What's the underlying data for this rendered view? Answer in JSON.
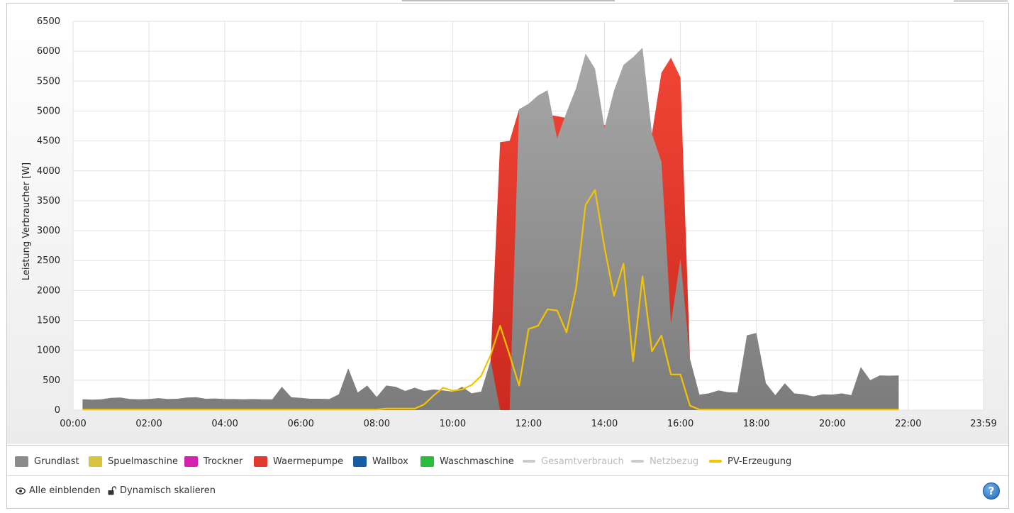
{
  "chart_data": {
    "type": "area",
    "ylabel": "Leistung Verbraucher [W]",
    "xlabel": "",
    "ylim": [
      0,
      6500
    ],
    "y_ticks": [
      "0",
      "500",
      "1000",
      "1500",
      "2000",
      "2500",
      "3000",
      "3500",
      "4000",
      "4500",
      "5000",
      "5500",
      "6000",
      "6500"
    ],
    "x_tick_labels": [
      "00:00",
      "02:00",
      "04:00",
      "06:00",
      "08:00",
      "10:00",
      "12:00",
      "14:00",
      "16:00",
      "18:00",
      "20:00",
      "22:00",
      "23:59"
    ],
    "x_tick_minutes": [
      0,
      120,
      240,
      360,
      480,
      600,
      720,
      840,
      960,
      1080,
      1200,
      1320,
      1439
    ],
    "x_range_minutes": [
      0,
      1439
    ],
    "grid": true,
    "series": [
      {
        "name": "Grundlast",
        "color": "#8c8c8c",
        "kind": "area",
        "points": [
          [
            15,
            180
          ],
          [
            30,
            175
          ],
          [
            45,
            180
          ],
          [
            60,
            205
          ],
          [
            75,
            210
          ],
          [
            90,
            185
          ],
          [
            105,
            180
          ],
          [
            120,
            185
          ],
          [
            135,
            200
          ],
          [
            150,
            185
          ],
          [
            165,
            190
          ],
          [
            180,
            210
          ],
          [
            195,
            215
          ],
          [
            210,
            190
          ],
          [
            225,
            195
          ],
          [
            240,
            185
          ],
          [
            255,
            185
          ],
          [
            270,
            180
          ],
          [
            285,
            185
          ],
          [
            300,
            180
          ],
          [
            315,
            180
          ],
          [
            330,
            390
          ],
          [
            345,
            215
          ],
          [
            360,
            205
          ],
          [
            375,
            190
          ],
          [
            390,
            190
          ],
          [
            405,
            185
          ],
          [
            420,
            265
          ],
          [
            435,
            700
          ],
          [
            450,
            295
          ],
          [
            465,
            410
          ],
          [
            480,
            220
          ],
          [
            495,
            410
          ],
          [
            510,
            390
          ],
          [
            525,
            320
          ],
          [
            540,
            375
          ],
          [
            555,
            320
          ],
          [
            570,
            345
          ],
          [
            585,
            330
          ],
          [
            600,
            310
          ],
          [
            615,
            390
          ],
          [
            630,
            280
          ],
          [
            645,
            310
          ],
          [
            660,
            830
          ],
          [
            675,
            0
          ],
          [
            690,
            0
          ],
          [
            705,
            5030
          ],
          [
            720,
            5120
          ],
          [
            735,
            5260
          ],
          [
            750,
            5350
          ],
          [
            765,
            4540
          ],
          [
            780,
            4980
          ],
          [
            795,
            5380
          ],
          [
            810,
            5960
          ],
          [
            825,
            5710
          ],
          [
            840,
            4720
          ],
          [
            855,
            5340
          ],
          [
            870,
            5770
          ],
          [
            885,
            5900
          ],
          [
            900,
            6060
          ],
          [
            915,
            4620
          ],
          [
            930,
            4150
          ],
          [
            945,
            1450
          ],
          [
            960,
            2530
          ],
          [
            975,
            860
          ],
          [
            990,
            260
          ],
          [
            1005,
            280
          ],
          [
            1020,
            330
          ],
          [
            1035,
            300
          ],
          [
            1050,
            295
          ],
          [
            1065,
            1250
          ],
          [
            1080,
            1290
          ],
          [
            1095,
            450
          ],
          [
            1110,
            250
          ],
          [
            1125,
            450
          ],
          [
            1140,
            280
          ],
          [
            1155,
            265
          ],
          [
            1170,
            230
          ],
          [
            1185,
            265
          ],
          [
            1200,
            260
          ],
          [
            1215,
            280
          ],
          [
            1230,
            250
          ],
          [
            1245,
            720
          ],
          [
            1260,
            500
          ],
          [
            1275,
            580
          ],
          [
            1290,
            575
          ],
          [
            1305,
            580
          ]
        ]
      },
      {
        "name": "Waermepumpe",
        "color": "#e23a2e",
        "kind": "area",
        "points": [
          [
            660,
            830
          ],
          [
            675,
            4480
          ],
          [
            690,
            4500
          ],
          [
            705,
            5030
          ],
          [
            915,
            4620
          ],
          [
            930,
            5640
          ],
          [
            945,
            5890
          ],
          [
            960,
            5560
          ],
          [
            975,
            860
          ]
        ]
      },
      {
        "name": "PV-Erzeugung",
        "color": "#f5c400",
        "kind": "line",
        "points": [
          [
            15,
            10
          ],
          [
            60,
            10
          ],
          [
            120,
            10
          ],
          [
            180,
            10
          ],
          [
            240,
            10
          ],
          [
            300,
            10
          ],
          [
            360,
            10
          ],
          [
            420,
            10
          ],
          [
            480,
            10
          ],
          [
            495,
            25
          ],
          [
            510,
            25
          ],
          [
            525,
            25
          ],
          [
            540,
            25
          ],
          [
            555,
            95
          ],
          [
            570,
            245
          ],
          [
            585,
            375
          ],
          [
            600,
            325
          ],
          [
            615,
            345
          ],
          [
            630,
            420
          ],
          [
            645,
            570
          ],
          [
            660,
            920
          ],
          [
            675,
            1410
          ],
          [
            690,
            920
          ],
          [
            705,
            410
          ],
          [
            720,
            1355
          ],
          [
            735,
            1410
          ],
          [
            750,
            1685
          ],
          [
            765,
            1665
          ],
          [
            780,
            1300
          ],
          [
            795,
            2040
          ],
          [
            810,
            3430
          ],
          [
            825,
            3680
          ],
          [
            840,
            2720
          ],
          [
            855,
            1910
          ],
          [
            870,
            2450
          ],
          [
            885,
            815
          ],
          [
            900,
            2235
          ],
          [
            915,
            985
          ],
          [
            930,
            1245
          ],
          [
            945,
            595
          ],
          [
            960,
            595
          ],
          [
            975,
            75
          ],
          [
            990,
            10
          ],
          [
            1050,
            10
          ],
          [
            1110,
            10
          ],
          [
            1170,
            10
          ],
          [
            1230,
            10
          ],
          [
            1305,
            10
          ]
        ]
      }
    ]
  },
  "legend": [
    {
      "label": "Grundlast",
      "color": "#8c8c8c",
      "type": "area",
      "enabled": true
    },
    {
      "label": "Spuelmaschine",
      "color": "#d8c43e",
      "type": "area",
      "enabled": true
    },
    {
      "label": "Trockner",
      "color": "#d520b0",
      "type": "area",
      "enabled": true
    },
    {
      "label": "Waermepumpe",
      "color": "#e23a2e",
      "type": "area",
      "enabled": true
    },
    {
      "label": "Wallbox",
      "color": "#145ea8",
      "type": "area",
      "enabled": true
    },
    {
      "label": "Waschmaschine",
      "color": "#2cbe3a",
      "type": "area",
      "enabled": true
    },
    {
      "label": "Gesamtverbrauch",
      "color": "#cccccc",
      "type": "line",
      "enabled": false
    },
    {
      "label": "Netzbezug",
      "color": "#cccccc",
      "type": "line",
      "enabled": false
    },
    {
      "label": "PV-Erzeugung",
      "color": "#f5c400",
      "type": "line",
      "enabled": true
    }
  ],
  "controls": {
    "show_all_label": "Alle einblenden",
    "show_all_icon": "eye-icon",
    "dynamic_scale_label": "Dynamisch skalieren",
    "dynamic_scale_icon": "unlock-icon",
    "help_label": "?",
    "help_icon": "help-icon"
  }
}
